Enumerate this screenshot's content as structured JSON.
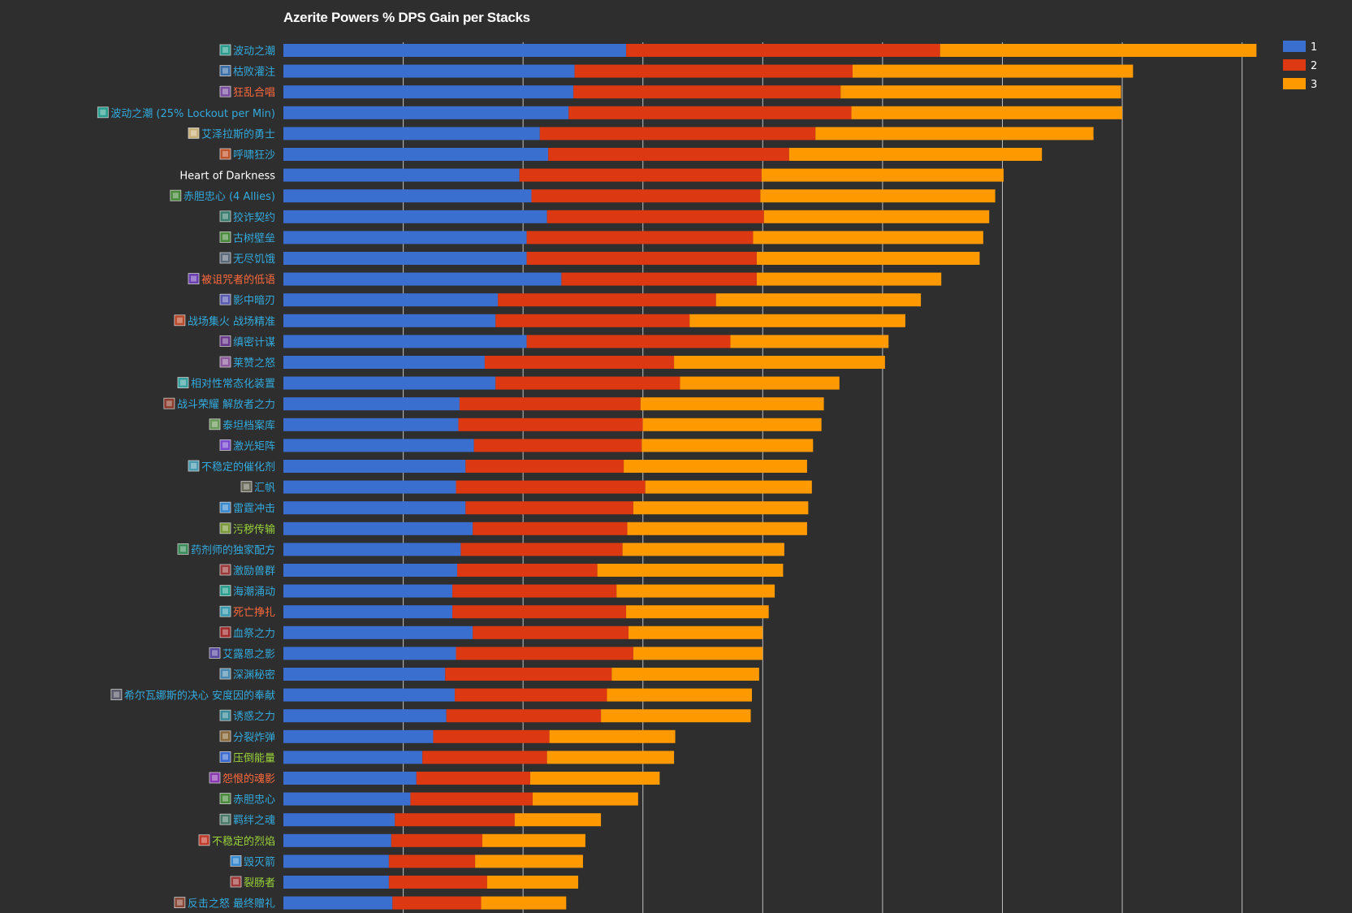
{
  "chart_data": {
    "type": "bar",
    "orientation": "horizontal",
    "stacked": true,
    "title": "Azerite Powers % DPS Gain per Stacks",
    "xlabel": "",
    "ylabel": "",
    "grid": true,
    "legend_position": "top-right",
    "categories": [
      "波动之潮",
      "枯败灌注",
      "狂乱合唱",
      "波动之潮 (25% Lockout per Min)",
      "艾泽拉斯的勇士",
      "呼啸狂沙",
      "Heart of Darkness",
      "赤胆忠心 (4 Allies)",
      "狡诈契约",
      "古树壁垒",
      "无尽饥饿",
      "被诅咒者的低语",
      "影中暗刃",
      "战场集火 战场精准",
      "缜密计谋",
      "莱赞之怒",
      "相对性常态化装置",
      "战斗荣耀 解放者之力",
      "泰坦档案库",
      "激光矩阵",
      "不稳定的催化剂",
      "汇帆",
      "雷霆冲击",
      "污秽传输",
      "药剂师的独家配方",
      "激励兽群",
      "海潮涌动",
      "死亡挣扎",
      "血祭之力",
      "艾露恩之影",
      "深渊秘密",
      "希尔瓦娜斯的决心 安度因的奉献",
      "诱惑之力",
      "分裂炸弹",
      "压倒能量",
      "怨恨的魂影",
      "赤胆忠心",
      "羁绊之魂",
      "不稳定的烈焰",
      "毁灭箭",
      "裂肠者",
      "反击之怒 最终赠礼"
    ],
    "label_colors": [
      "#33aadd",
      "#33aadd",
      "#ff6a3d",
      "#33aadd",
      "#33aadd",
      "#33aadd",
      "#ffffff",
      "#33aadd",
      "#33aadd",
      "#33aadd",
      "#33aadd",
      "#ff6a3d",
      "#33aadd",
      "#33aadd",
      "#33aadd",
      "#33aadd",
      "#33aadd",
      "#33aadd",
      "#33aadd",
      "#33aadd",
      "#33aadd",
      "#33aadd",
      "#33aadd",
      "#9bd33a",
      "#33aadd",
      "#33aadd",
      "#33aadd",
      "#ff6a3d",
      "#33aadd",
      "#33aadd",
      "#33aadd",
      "#33aadd",
      "#33aadd",
      "#33aadd",
      "#9bd33a",
      "#ff6a3d",
      "#33aadd",
      "#33aadd",
      "#9bd33a",
      "#33aadd",
      "#9bd33a",
      "#33aadd"
    ],
    "icon_colors": [
      "#2a9d8f",
      "#3a6ea5",
      "#7b4fa0",
      "#2a9d8f",
      "#c9b27a",
      "#c0552b",
      null,
      "#4a8a3c",
      "#3a7d6e",
      "#4a8a3c",
      "#5a6a7a",
      "#6a3fb0",
      "#5a5ab0",
      "#b84a2a",
      "#6a3a8a",
      "#8a5a9a",
      "#3aa0a0",
      "#8a3a2a",
      "#6a9a5a",
      "#7a4ad0",
      "#4a9ab0",
      "#6a6a5a",
      "#3a8ad0",
      "#7a9a3a",
      "#3a8a5a",
      "#9a3a3a",
      "#2a9d8f",
      "#3a9ab0",
      "#a02a2a",
      "#5a4aa0",
      "#4a8ab0",
      "#5a5a6a",
      "#3a8a9a",
      "#8a6a3a",
      "#3a6ad0",
      "#8a3ab0",
      "#4a8a3c",
      "#4a7a6a",
      "#c03a2a",
      "#3a8ad0",
      "#a03a3a",
      "#8a4a3a"
    ],
    "series": [
      {
        "name": "1",
        "color": "#3a6fd0",
        "values": [
          14.3,
          12.15,
          12.1,
          11.9,
          10.7,
          11.05,
          9.85,
          10.35,
          11.0,
          10.15,
          10.15,
          11.6,
          8.95,
          8.85,
          10.15,
          8.4,
          8.85,
          7.35,
          7.3,
          7.95,
          7.6,
          7.2,
          7.6,
          7.9,
          7.4,
          7.25,
          7.05,
          7.05,
          7.9,
          7.2,
          6.75,
          7.15,
          6.8,
          6.25,
          5.8,
          5.55,
          5.3,
          4.65,
          4.5,
          4.4,
          4.4,
          4.55
        ]
      },
      {
        "name": "2",
        "color": "#dc3912",
        "values": [
          13.1,
          11.6,
          11.15,
          11.8,
          11.5,
          10.05,
          10.1,
          9.55,
          9.05,
          9.45,
          9.6,
          8.15,
          9.1,
          8.1,
          8.5,
          7.9,
          7.7,
          7.55,
          7.7,
          7.0,
          6.6,
          7.9,
          7.0,
          6.45,
          6.75,
          5.85,
          6.85,
          7.25,
          6.5,
          7.4,
          6.95,
          6.35,
          6.45,
          4.85,
          5.2,
          4.75,
          5.1,
          5.0,
          3.8,
          3.6,
          4.1,
          3.7
        ]
      },
      {
        "name": "3",
        "color": "#ff9900",
        "values": [
          13.2,
          11.7,
          11.7,
          11.3,
          11.6,
          10.55,
          10.1,
          9.8,
          9.4,
          9.6,
          9.3,
          7.7,
          8.55,
          9.0,
          6.6,
          8.8,
          6.65,
          7.65,
          7.45,
          7.15,
          7.65,
          6.95,
          7.3,
          7.5,
          6.75,
          7.75,
          6.6,
          5.95,
          5.6,
          5.4,
          6.15,
          6.05,
          6.25,
          5.25,
          5.3,
          5.4,
          4.4,
          3.6,
          4.3,
          4.5,
          3.8,
          3.55
        ]
      }
    ],
    "xlim": [
      0,
      41.3
    ],
    "gridline_step": 5
  }
}
